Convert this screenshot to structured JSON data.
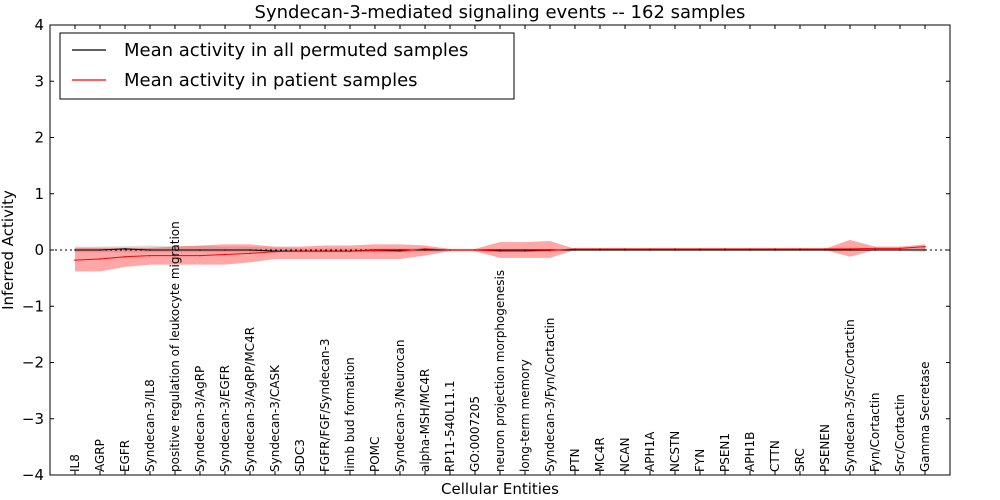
{
  "chart_data": {
    "type": "line",
    "title": "Syndecan-3-mediated signaling events -- 162 samples",
    "xlabel": "Cellular Entities",
    "ylabel": "Inferred Activity",
    "ylim": [
      -4,
      4
    ],
    "yticks": [
      {
        "value": 4,
        "label": "4"
      },
      {
        "value": 3,
        "label": "3"
      },
      {
        "value": 2,
        "label": "2"
      },
      {
        "value": 1,
        "label": "1"
      },
      {
        "value": 0,
        "label": "0"
      },
      {
        "value": -1,
        "label": "−1"
      },
      {
        "value": -2,
        "label": "−2"
      },
      {
        "value": -3,
        "label": "−3"
      },
      {
        "value": -4,
        "label": "−4"
      }
    ],
    "grid": false,
    "legend_position": "top-left",
    "categories": [
      "IL8",
      "AGRP",
      "EGFR",
      "Syndecan-3/IL8",
      "positive regulation of leukocyte migration",
      "Syndecan-3/AgRP",
      "Syndecan-3/EGFR",
      "Syndecan-3/AgRP/MC4R",
      "Syndecan-3/CASK",
      "SDC3",
      "FGFR/FGF/Syndecan-3",
      "limb bud formation",
      "POMC",
      "Syndecan-3/Neurocan",
      "alpha-MSH/MC4R",
      "RP11-540L11.1",
      "GO:0007205",
      "neuron projection morphogenesis",
      "long-term memory",
      "Syndecan-3/Fyn/Cortactin",
      "PTN",
      "MC4R",
      "NCAN",
      "APH1A",
      "NCSTN",
      "FYN",
      "PSEN1",
      "APH1B",
      "CTTN",
      "SRC",
      "PSENEN",
      "Syndecan-3/Src/Cortactin",
      "Fyn/Cortactin",
      "Src/Cortactin",
      "Gamma Secretase"
    ],
    "series": [
      {
        "name": "Mean activity in all permuted samples",
        "color": "#000000",
        "values": [
          0.0,
          0.0,
          0.02,
          0.0,
          0.0,
          0.0,
          0.0,
          0.0,
          -0.02,
          -0.02,
          -0.02,
          -0.02,
          0.0,
          0.0,
          0.0,
          0.0,
          0.0,
          0.0,
          0.0,
          0.0,
          0.0,
          0.0,
          0.0,
          0.0,
          0.0,
          0.0,
          0.0,
          0.0,
          0.0,
          0.0,
          0.0,
          0.0,
          0.0,
          0.0,
          0.0
        ],
        "band_lower": [
          -0.04,
          -0.04,
          -0.04,
          -0.04,
          -0.04,
          -0.04,
          -0.04,
          -0.04,
          -0.04,
          -0.04,
          -0.04,
          -0.04,
          -0.04,
          -0.04,
          -0.04,
          -0.02,
          -0.02,
          -0.02,
          -0.02,
          -0.02,
          -0.02,
          -0.02,
          -0.02,
          -0.02,
          -0.02,
          -0.02,
          -0.02,
          -0.02,
          -0.02,
          -0.02,
          -0.02,
          -0.02,
          -0.02,
          -0.02,
          -0.04
        ],
        "band_upper": [
          0.06,
          0.06,
          0.07,
          0.08,
          0.07,
          0.07,
          0.06,
          0.06,
          0.04,
          0.03,
          0.03,
          0.03,
          0.03,
          0.03,
          0.03,
          0.02,
          0.02,
          0.02,
          0.02,
          0.02,
          0.02,
          0.02,
          0.02,
          0.02,
          0.02,
          0.02,
          0.02,
          0.02,
          0.02,
          0.02,
          0.02,
          0.02,
          0.02,
          0.02,
          0.04
        ],
        "band_color": "#cccccc"
      },
      {
        "name": "Mean activity in patient samples",
        "color": "#ff0000",
        "values": [
          -0.18,
          -0.16,
          -0.12,
          -0.1,
          -0.1,
          -0.1,
          -0.08,
          -0.06,
          -0.03,
          -0.02,
          -0.02,
          -0.02,
          -0.01,
          -0.02,
          0.02,
          0.0,
          0.0,
          -0.02,
          -0.02,
          -0.01,
          0.02,
          0.02,
          0.02,
          0.02,
          0.02,
          0.02,
          0.02,
          0.02,
          0.02,
          0.02,
          0.02,
          0.02,
          0.03,
          0.03,
          0.06
        ],
        "band_lower": [
          -0.38,
          -0.38,
          -0.3,
          -0.26,
          -0.26,
          -0.26,
          -0.26,
          -0.22,
          -0.16,
          -0.16,
          -0.16,
          -0.16,
          -0.16,
          -0.16,
          -0.1,
          -0.02,
          -0.02,
          -0.14,
          -0.14,
          -0.14,
          0.0,
          0.0,
          0.0,
          0.0,
          0.0,
          0.0,
          0.0,
          0.0,
          0.0,
          0.0,
          0.0,
          -0.12,
          0.0,
          0.0,
          0.0
        ],
        "band_upper": [
          0.04,
          0.04,
          0.04,
          0.04,
          0.06,
          0.08,
          0.1,
          0.1,
          0.06,
          0.06,
          0.08,
          0.08,
          0.1,
          0.1,
          0.08,
          0.02,
          0.02,
          0.14,
          0.14,
          0.16,
          0.02,
          0.02,
          0.02,
          0.02,
          0.02,
          0.02,
          0.02,
          0.02,
          0.02,
          0.02,
          0.02,
          0.18,
          0.06,
          0.06,
          0.1
        ],
        "band_color": "#ff0000"
      }
    ]
  }
}
